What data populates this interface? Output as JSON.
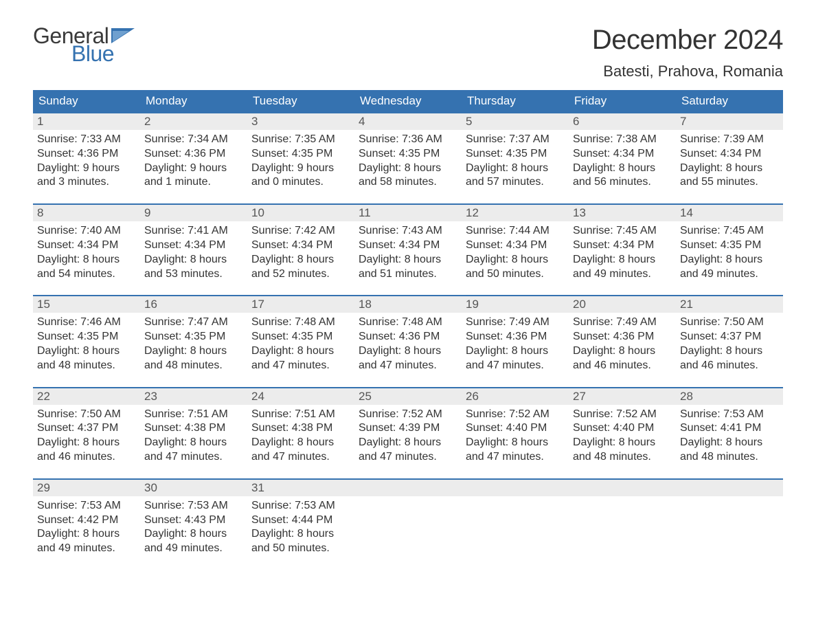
{
  "brand": {
    "word1": "General",
    "word2": "Blue",
    "word1_color": "#3a3a3a",
    "word2_color": "#3572b0",
    "flag_color": "#3572b0"
  },
  "title": "December 2024",
  "location": "Batesti, Prahova, Romania",
  "colors": {
    "header_bg": "#3572b0",
    "header_text": "#ffffff",
    "daynum_bg": "#ececec",
    "daynum_text": "#555555",
    "body_text": "#333333",
    "week_border": "#3572b0",
    "page_bg": "#ffffff"
  },
  "fonts": {
    "title_size_pt": 30,
    "location_size_pt": 17,
    "weekday_size_pt": 13,
    "body_size_pt": 12
  },
  "calendar": {
    "type": "table",
    "weekdays": [
      "Sunday",
      "Monday",
      "Tuesday",
      "Wednesday",
      "Thursday",
      "Friday",
      "Saturday"
    ],
    "weeks": [
      [
        {
          "d": "1",
          "l1": "Sunrise: 7:33 AM",
          "l2": "Sunset: 4:36 PM",
          "l3": "Daylight: 9 hours",
          "l4": "and 3 minutes."
        },
        {
          "d": "2",
          "l1": "Sunrise: 7:34 AM",
          "l2": "Sunset: 4:36 PM",
          "l3": "Daylight: 9 hours",
          "l4": "and 1 minute."
        },
        {
          "d": "3",
          "l1": "Sunrise: 7:35 AM",
          "l2": "Sunset: 4:35 PM",
          "l3": "Daylight: 9 hours",
          "l4": "and 0 minutes."
        },
        {
          "d": "4",
          "l1": "Sunrise: 7:36 AM",
          "l2": "Sunset: 4:35 PM",
          "l3": "Daylight: 8 hours",
          "l4": "and 58 minutes."
        },
        {
          "d": "5",
          "l1": "Sunrise: 7:37 AM",
          "l2": "Sunset: 4:35 PM",
          "l3": "Daylight: 8 hours",
          "l4": "and 57 minutes."
        },
        {
          "d": "6",
          "l1": "Sunrise: 7:38 AM",
          "l2": "Sunset: 4:34 PM",
          "l3": "Daylight: 8 hours",
          "l4": "and 56 minutes."
        },
        {
          "d": "7",
          "l1": "Sunrise: 7:39 AM",
          "l2": "Sunset: 4:34 PM",
          "l3": "Daylight: 8 hours",
          "l4": "and 55 minutes."
        }
      ],
      [
        {
          "d": "8",
          "l1": "Sunrise: 7:40 AM",
          "l2": "Sunset: 4:34 PM",
          "l3": "Daylight: 8 hours",
          "l4": "and 54 minutes."
        },
        {
          "d": "9",
          "l1": "Sunrise: 7:41 AM",
          "l2": "Sunset: 4:34 PM",
          "l3": "Daylight: 8 hours",
          "l4": "and 53 minutes."
        },
        {
          "d": "10",
          "l1": "Sunrise: 7:42 AM",
          "l2": "Sunset: 4:34 PM",
          "l3": "Daylight: 8 hours",
          "l4": "and 52 minutes."
        },
        {
          "d": "11",
          "l1": "Sunrise: 7:43 AM",
          "l2": "Sunset: 4:34 PM",
          "l3": "Daylight: 8 hours",
          "l4": "and 51 minutes."
        },
        {
          "d": "12",
          "l1": "Sunrise: 7:44 AM",
          "l2": "Sunset: 4:34 PM",
          "l3": "Daylight: 8 hours",
          "l4": "and 50 minutes."
        },
        {
          "d": "13",
          "l1": "Sunrise: 7:45 AM",
          "l2": "Sunset: 4:34 PM",
          "l3": "Daylight: 8 hours",
          "l4": "and 49 minutes."
        },
        {
          "d": "14",
          "l1": "Sunrise: 7:45 AM",
          "l2": "Sunset: 4:35 PM",
          "l3": "Daylight: 8 hours",
          "l4": "and 49 minutes."
        }
      ],
      [
        {
          "d": "15",
          "l1": "Sunrise: 7:46 AM",
          "l2": "Sunset: 4:35 PM",
          "l3": "Daylight: 8 hours",
          "l4": "and 48 minutes."
        },
        {
          "d": "16",
          "l1": "Sunrise: 7:47 AM",
          "l2": "Sunset: 4:35 PM",
          "l3": "Daylight: 8 hours",
          "l4": "and 48 minutes."
        },
        {
          "d": "17",
          "l1": "Sunrise: 7:48 AM",
          "l2": "Sunset: 4:35 PM",
          "l3": "Daylight: 8 hours",
          "l4": "and 47 minutes."
        },
        {
          "d": "18",
          "l1": "Sunrise: 7:48 AM",
          "l2": "Sunset: 4:36 PM",
          "l3": "Daylight: 8 hours",
          "l4": "and 47 minutes."
        },
        {
          "d": "19",
          "l1": "Sunrise: 7:49 AM",
          "l2": "Sunset: 4:36 PM",
          "l3": "Daylight: 8 hours",
          "l4": "and 47 minutes."
        },
        {
          "d": "20",
          "l1": "Sunrise: 7:49 AM",
          "l2": "Sunset: 4:36 PM",
          "l3": "Daylight: 8 hours",
          "l4": "and 46 minutes."
        },
        {
          "d": "21",
          "l1": "Sunrise: 7:50 AM",
          "l2": "Sunset: 4:37 PM",
          "l3": "Daylight: 8 hours",
          "l4": "and 46 minutes."
        }
      ],
      [
        {
          "d": "22",
          "l1": "Sunrise: 7:50 AM",
          "l2": "Sunset: 4:37 PM",
          "l3": "Daylight: 8 hours",
          "l4": "and 46 minutes."
        },
        {
          "d": "23",
          "l1": "Sunrise: 7:51 AM",
          "l2": "Sunset: 4:38 PM",
          "l3": "Daylight: 8 hours",
          "l4": "and 47 minutes."
        },
        {
          "d": "24",
          "l1": "Sunrise: 7:51 AM",
          "l2": "Sunset: 4:38 PM",
          "l3": "Daylight: 8 hours",
          "l4": "and 47 minutes."
        },
        {
          "d": "25",
          "l1": "Sunrise: 7:52 AM",
          "l2": "Sunset: 4:39 PM",
          "l3": "Daylight: 8 hours",
          "l4": "and 47 minutes."
        },
        {
          "d": "26",
          "l1": "Sunrise: 7:52 AM",
          "l2": "Sunset: 4:40 PM",
          "l3": "Daylight: 8 hours",
          "l4": "and 47 minutes."
        },
        {
          "d": "27",
          "l1": "Sunrise: 7:52 AM",
          "l2": "Sunset: 4:40 PM",
          "l3": "Daylight: 8 hours",
          "l4": "and 48 minutes."
        },
        {
          "d": "28",
          "l1": "Sunrise: 7:53 AM",
          "l2": "Sunset: 4:41 PM",
          "l3": "Daylight: 8 hours",
          "l4": "and 48 minutes."
        }
      ],
      [
        {
          "d": "29",
          "l1": "Sunrise: 7:53 AM",
          "l2": "Sunset: 4:42 PM",
          "l3": "Daylight: 8 hours",
          "l4": "and 49 minutes."
        },
        {
          "d": "30",
          "l1": "Sunrise: 7:53 AM",
          "l2": "Sunset: 4:43 PM",
          "l3": "Daylight: 8 hours",
          "l4": "and 49 minutes."
        },
        {
          "d": "31",
          "l1": "Sunrise: 7:53 AM",
          "l2": "Sunset: 4:44 PM",
          "l3": "Daylight: 8 hours",
          "l4": "and 50 minutes."
        },
        {
          "d": "",
          "l1": "",
          "l2": "",
          "l3": "",
          "l4": ""
        },
        {
          "d": "",
          "l1": "",
          "l2": "",
          "l3": "",
          "l4": ""
        },
        {
          "d": "",
          "l1": "",
          "l2": "",
          "l3": "",
          "l4": ""
        },
        {
          "d": "",
          "l1": "",
          "l2": "",
          "l3": "",
          "l4": ""
        }
      ]
    ]
  }
}
